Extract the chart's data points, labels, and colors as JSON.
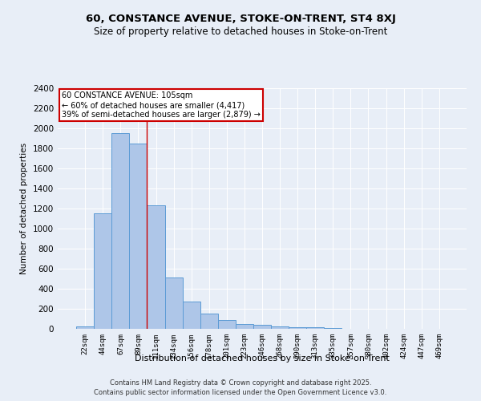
{
  "title": "60, CONSTANCE AVENUE, STOKE-ON-TRENT, ST4 8XJ",
  "subtitle": "Size of property relative to detached houses in Stoke-on-Trent",
  "xlabel": "Distribution of detached houses by size in Stoke-on-Trent",
  "ylabel": "Number of detached properties",
  "categories": [
    "22sqm",
    "44sqm",
    "67sqm",
    "89sqm",
    "111sqm",
    "134sqm",
    "156sqm",
    "178sqm",
    "201sqm",
    "223sqm",
    "246sqm",
    "268sqm",
    "290sqm",
    "313sqm",
    "335sqm",
    "357sqm",
    "380sqm",
    "402sqm",
    "424sqm",
    "447sqm",
    "469sqm"
  ],
  "values": [
    25,
    1150,
    1950,
    1850,
    1230,
    510,
    270,
    155,
    90,
    50,
    40,
    25,
    20,
    15,
    5,
    3,
    2,
    1,
    1,
    1,
    1
  ],
  "bar_color": "#aec6e8",
  "bar_edge_color": "#5b9bd5",
  "background_color": "#e8eef7",
  "grid_color": "#ffffff",
  "annotation_text": "60 CONSTANCE AVENUE: 105sqm\n← 60% of detached houses are smaller (4,417)\n39% of semi-detached houses are larger (2,879) →",
  "annotation_box_color": "#ffffff",
  "annotation_box_edge": "#cc0000",
  "red_line_x": 3.5,
  "ylim": [
    0,
    2400
  ],
  "yticks": [
    0,
    200,
    400,
    600,
    800,
    1000,
    1200,
    1400,
    1600,
    1800,
    2000,
    2200,
    2400
  ],
  "footer_line1": "Contains HM Land Registry data © Crown copyright and database right 2025.",
  "footer_line2": "Contains public sector information licensed under the Open Government Licence v3.0."
}
